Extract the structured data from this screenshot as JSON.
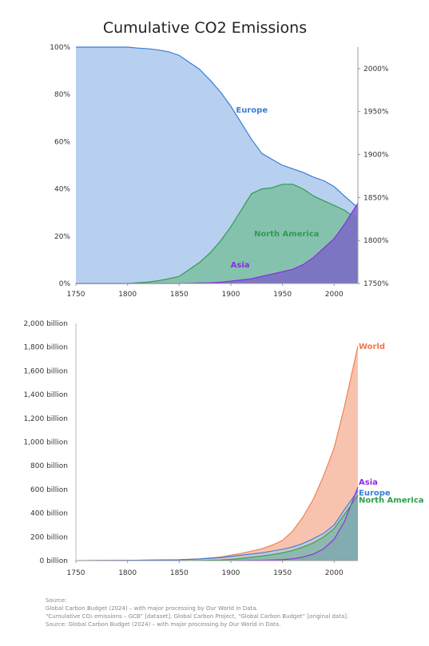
{
  "title": "Cumulative CO2 Emissions",
  "source": {
    "heading": "Source:",
    "lines": [
      "Global Carbon Budget (2024) – with major processing by Our World in Data.",
      "“Cumulative CO₂ emissions – GCB” [dataset]. Global Carbon Project, “Global Carbon Budget” [original data].",
      "Source: Global Carbon Budget (2024) – with major processing by Our World in Data."
    ]
  },
  "colors": {
    "europe": "#3a7dd6",
    "north_america": "#2e9e4a",
    "asia": "#8a2be2",
    "world": "#f07a4a"
  },
  "chart_data": [
    {
      "type": "area",
      "subtype": "stacked-percent",
      "title": "Cumulative CO2 Emissions",
      "xlabel": "",
      "ylabel": "",
      "xlim": [
        1750,
        2023
      ],
      "ylim": [
        0,
        100
      ],
      "x_ticks": [
        "1750",
        "1800",
        "1850",
        "1900",
        "1950",
        "2000"
      ],
      "y_ticks": [
        "0%",
        "20%",
        "40%",
        "60%",
        "80%",
        "100%"
      ],
      "secondary_y_ticks": [
        "1750%",
        "1800%",
        "1850%",
        "1900%",
        "1950%",
        "2000%"
      ],
      "secondary_ylim": [
        1750,
        2025
      ],
      "x": [
        1750,
        1800,
        1810,
        1820,
        1830,
        1840,
        1850,
        1860,
        1870,
        1880,
        1890,
        1900,
        1910,
        1920,
        1930,
        1940,
        1950,
        1960,
        1970,
        1980,
        1990,
        2000,
        2010,
        2023
      ],
      "series": [
        {
          "name": "Europe",
          "values": [
            100,
            100,
            99.6,
            99.3,
            98.8,
            98,
            96.5,
            93.5,
            90.5,
            86,
            81,
            75,
            68,
            61,
            55,
            52.5,
            50,
            48.5,
            47,
            45,
            43.5,
            41,
            37,
            32
          ]
        },
        {
          "name": "North America",
          "values": [
            0,
            0,
            0.3,
            0.6,
            1.2,
            2,
            3,
            6,
            9,
            13,
            18,
            24,
            31,
            38,
            40,
            40.5,
            42,
            42,
            40,
            37,
            35,
            33,
            31,
            27
          ]
        },
        {
          "name": "Asia",
          "values": [
            0,
            0,
            0,
            0,
            0,
            0,
            0,
            0.1,
            0.2,
            0.3,
            0.5,
            1,
            1.5,
            2,
            3,
            4,
            5,
            6,
            8,
            11,
            15,
            19,
            25,
            34
          ]
        }
      ],
      "labels": [
        {
          "text": "Europe",
          "series": "Europe"
        },
        {
          "text": "North America",
          "series": "North America"
        },
        {
          "text": "Asia",
          "series": "Asia"
        }
      ]
    },
    {
      "type": "area",
      "subtype": "overlapping",
      "xlabel": "",
      "ylabel": "",
      "xlim": [
        1750,
        2023
      ],
      "ylim": [
        0,
        2000
      ],
      "x_ticks": [
        "1750",
        "1800",
        "1850",
        "1900",
        "1950",
        "2000"
      ],
      "y_ticks": [
        "0 billion",
        "200 billion",
        "400 billion",
        "600 billion",
        "800 billion",
        "1,000 billion",
        "1,200 billion",
        "1,400 billion",
        "1,600 billion",
        "1,800 billion",
        "2,000 billion"
      ],
      "x": [
        1750,
        1800,
        1850,
        1870,
        1880,
        1890,
        1900,
        1910,
        1920,
        1930,
        1940,
        1950,
        1960,
        1970,
        1980,
        1990,
        2000,
        2010,
        2023
      ],
      "series": [
        {
          "name": "World",
          "values": [
            0,
            2,
            7,
            15,
            22,
            30,
            45,
            60,
            80,
            100,
            130,
            170,
            250,
            370,
            520,
            720,
            950,
            1300,
            1810
          ]
        },
        {
          "name": "Asia",
          "values": [
            0,
            0,
            0,
            0,
            0,
            0,
            0,
            1,
            2,
            3,
            5,
            8,
            15,
            30,
            55,
            100,
            180,
            330,
            620
          ]
        },
        {
          "name": "Europe",
          "values": [
            0,
            2,
            7,
            14,
            19,
            25,
            35,
            45,
            55,
            65,
            80,
            95,
            115,
            145,
            185,
            230,
            300,
            430,
            590
          ]
        },
        {
          "name": "North America",
          "values": [
            0,
            0,
            0,
            1,
            3,
            5,
            10,
            18,
            28,
            38,
            50,
            65,
            85,
            115,
            150,
            200,
            270,
            390,
            550
          ]
        }
      ],
      "labels": [
        {
          "text": "World",
          "series": "World"
        },
        {
          "text": "Asia",
          "series": "Asia"
        },
        {
          "text": "Europe",
          "series": "Europe"
        },
        {
          "text": "North America",
          "series": "North America"
        }
      ]
    }
  ]
}
